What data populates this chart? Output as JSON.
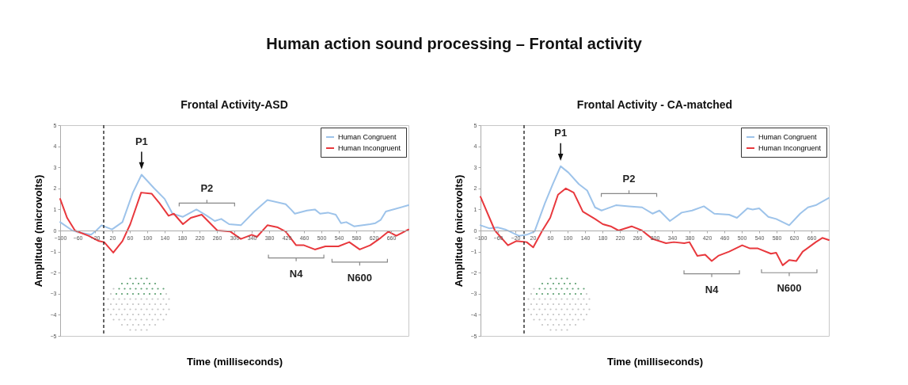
{
  "chart_data": [
    {
      "type": "line",
      "title": "Frontal Activity-ASD",
      "xlabel": "Time (milliseconds)",
      "ylabel": "Amplitude (microvolts)",
      "xlim": [
        -100,
        700
      ],
      "ylim": [
        -5,
        5
      ],
      "xticks": [
        -100,
        -60,
        -20,
        20,
        60,
        100,
        140,
        180,
        220,
        260,
        300,
        340,
        380,
        420,
        460,
        500,
        540,
        580,
        620,
        660
      ],
      "yticks": [
        -5,
        -4,
        -3,
        -2,
        -1,
        0,
        1,
        2,
        3,
        4,
        5
      ],
      "grid": false,
      "legend": "top right",
      "series": [
        {
          "name": "Human Congruent",
          "color": "#9dc3ea",
          "x": [
            -100,
            -72,
            -53,
            -29,
            -17,
            -5,
            19,
            43,
            67,
            87,
            116,
            140,
            158,
            182,
            213,
            237,
            255,
            270,
            288,
            315,
            346,
            376,
            418,
            430,
            439,
            467,
            485,
            497,
            515,
            533,
            545,
            557,
            575,
            612,
            624,
            636,
            648,
            700
          ],
          "values": [
            0.4,
            0.0,
            -0.1,
            -0.2,
            0.0,
            0.25,
            0.05,
            0.4,
            1.8,
            2.65,
            2.0,
            1.5,
            0.8,
            0.65,
            1.0,
            0.7,
            0.45,
            0.55,
            0.3,
            0.25,
            0.9,
            1.45,
            1.25,
            1.0,
            0.8,
            0.95,
            1.0,
            0.8,
            0.85,
            0.75,
            0.35,
            0.4,
            0.2,
            0.3,
            0.35,
            0.5,
            0.9,
            1.2
          ]
        },
        {
          "name": "Human Incongruent",
          "color": "#e8383d",
          "x": [
            -100,
            -84,
            -66,
            -35,
            -11,
            1,
            22,
            43,
            61,
            86,
            110,
            128,
            149,
            161,
            182,
            200,
            225,
            261,
            291,
            315,
            340,
            352,
            376,
            400,
            418,
            442,
            460,
            485,
            509,
            539,
            564,
            588,
            612,
            636,
            654,
            672,
            700
          ],
          "values": [
            1.5,
            0.6,
            0.0,
            -0.25,
            -0.5,
            -0.55,
            -1.05,
            -0.5,
            0.3,
            1.8,
            1.75,
            1.3,
            0.7,
            0.8,
            0.3,
            0.6,
            0.75,
            0.0,
            -0.05,
            -0.4,
            -0.2,
            -0.3,
            0.25,
            0.15,
            -0.05,
            -0.7,
            -0.7,
            -0.9,
            -0.75,
            -0.75,
            -0.55,
            -0.9,
            -0.7,
            -0.35,
            -0.05,
            -0.25,
            0.05
          ]
        }
      ],
      "ref_lines": [
        {
          "axis": "x",
          "value": 0,
          "color": "#000000",
          "line_style": "dashed"
        }
      ],
      "annotations": [
        "Human action sound processing – Frontal activity",
        {
          "text": "P1",
          "x": 87,
          "y": 2.65
        },
        {
          "text": "P2",
          "x": 237,
          "y": 0.7
        },
        {
          "text": "N4",
          "x": 442,
          "y": -0.7
        },
        {
          "text": "N600",
          "x": 588,
          "y": -0.9
        }
      ]
    },
    {
      "type": "line",
      "title": "Frontal Activity - CA-matched",
      "xlabel": "Time (milliseconds)",
      "ylabel": "Amplitude (microvolts)",
      "xlim": [
        -100,
        700
      ],
      "ylim": [
        -5,
        5
      ],
      "xticks": [
        -100,
        -60,
        -20,
        20,
        60,
        100,
        140,
        180,
        220,
        260,
        300,
        340,
        380,
        420,
        460,
        500,
        540,
        580,
        620,
        660
      ],
      "yticks": [
        -5,
        -4,
        -3,
        -2,
        -1,
        0,
        1,
        2,
        3,
        4,
        5
      ],
      "grid": false,
      "legend": "top right",
      "series": [
        {
          "name": "Human Congruent",
          "color": "#9dc3ea",
          "x": [
            -100,
            -79,
            -61,
            -43,
            -12,
            6,
            24,
            48,
            66,
            84,
            102,
            126,
            145,
            163,
            178,
            211,
            241,
            271,
            295,
            311,
            335,
            362,
            386,
            413,
            437,
            471,
            489,
            513,
            525,
            540,
            561,
            579,
            609,
            634,
            652,
            670,
            700
          ],
          "values": [
            0.25,
            0.1,
            0.15,
            0.05,
            -0.25,
            -0.2,
            -0.05,
            1.3,
            2.2,
            3.05,
            2.75,
            2.2,
            1.9,
            1.1,
            0.95,
            1.2,
            1.15,
            1.1,
            0.8,
            0.95,
            0.45,
            0.85,
            0.95,
            1.15,
            0.8,
            0.75,
            0.6,
            1.05,
            1.0,
            1.05,
            0.65,
            0.55,
            0.25,
            0.8,
            1.1,
            1.2,
            1.55
          ]
        },
        {
          "name": "Human Incongruent",
          "color": "#e8383d",
          "x": [
            -100,
            -67,
            -37,
            -18,
            6,
            21,
            42,
            60,
            78,
            96,
            114,
            135,
            163,
            181,
            199,
            217,
            247,
            271,
            295,
            326,
            344,
            368,
            380,
            398,
            416,
            431,
            446,
            471,
            501,
            519,
            537,
            567,
            579,
            594,
            609,
            625,
            640,
            670,
            685,
            700
          ],
          "values": [
            1.6,
            0.0,
            -0.7,
            -0.5,
            -0.55,
            -0.8,
            0.0,
            0.6,
            1.7,
            2.0,
            1.8,
            0.9,
            0.55,
            0.3,
            0.2,
            0.0,
            0.2,
            0.0,
            -0.4,
            -0.6,
            -0.55,
            -0.6,
            -0.55,
            -1.2,
            -1.15,
            -1.45,
            -1.2,
            -1.0,
            -0.7,
            -0.85,
            -0.85,
            -1.1,
            -1.05,
            -1.65,
            -1.4,
            -1.45,
            -1.0,
            -0.55,
            -0.35,
            -0.45
          ]
        }
      ],
      "ref_lines": [
        {
          "axis": "x",
          "value": 0,
          "color": "#000000",
          "line_style": "dashed"
        }
      ],
      "annotations": [
        {
          "text": "P1",
          "x": 84,
          "y": 3.05
        },
        {
          "text": "P2",
          "x": 241,
          "y": 1.15
        },
        {
          "text": "N4",
          "x": 431,
          "y": -1.45
        },
        {
          "text": "N600",
          "x": 609,
          "y": -1.4
        }
      ]
    }
  ]
}
